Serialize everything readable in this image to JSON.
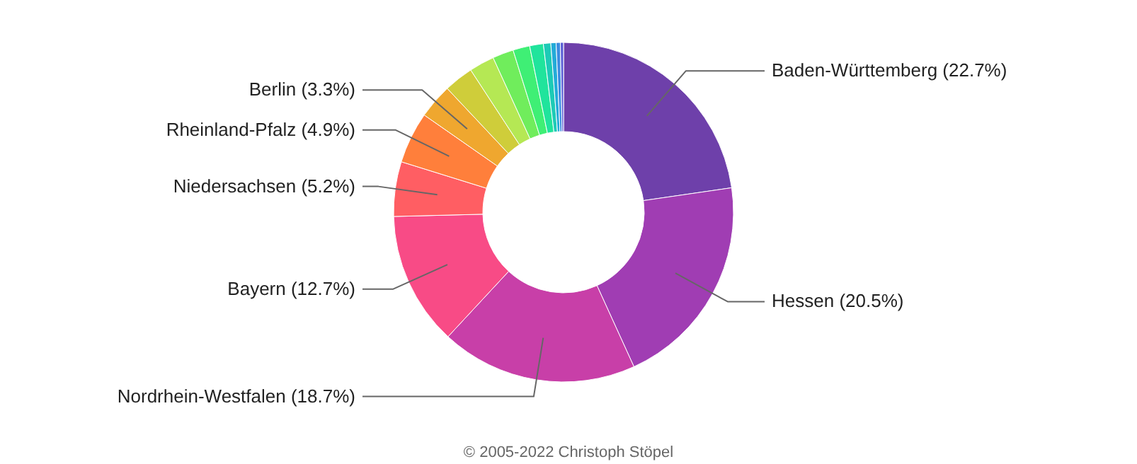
{
  "chart_data": {
    "type": "donut",
    "categories": [
      "Baden-Württemberg",
      "Hessen",
      "Nordrhein-Westfalen",
      "Bayern",
      "Niedersachsen",
      "Rheinland-Pfalz",
      "Berlin",
      null,
      null,
      null,
      null,
      null,
      null,
      null,
      null,
      null
    ],
    "values": [
      22.7,
      20.5,
      18.7,
      12.7,
      5.2,
      4.9,
      3.3,
      2.8,
      2.4,
      2.0,
      1.6,
      1.3,
      0.7,
      0.5,
      0.4,
      0.3
    ],
    "colors": [
      "#6e40aa",
      "#a03db3",
      "#c83fa8",
      "#f84b86",
      "#ff5e63",
      "#ff7f3b",
      "#efa72f",
      "#cfcd3a",
      "#b5e854",
      "#70ed5c",
      "#3fef75",
      "#20e49c",
      "#1dcbb6",
      "#23abd8",
      "#3b8de0",
      "#5a5fd6"
    ],
    "value_labels": [
      "(22.7%)",
      "(20.5%)",
      "(18.7%)",
      "(12.7%)",
      "(5.2%)",
      "(4.9%)",
      "(3.3%)",
      null,
      null,
      null,
      null,
      null,
      null,
      null,
      null,
      null
    ],
    "annotations": [
      "© 2005-2022 Christoph Stöpel"
    ]
  }
}
